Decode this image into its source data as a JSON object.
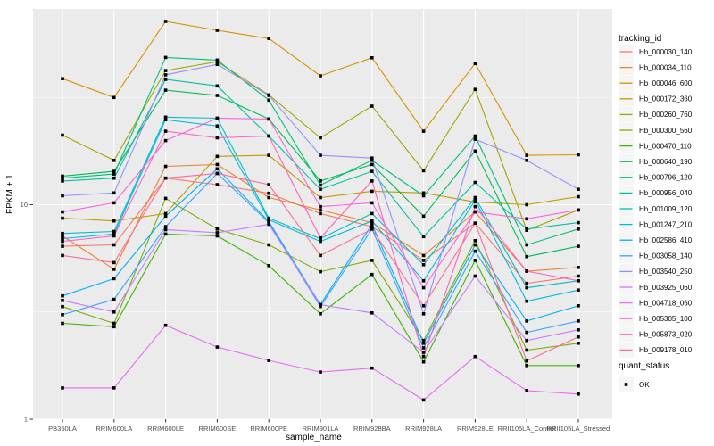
{
  "chart_data": {
    "type": "line",
    "title": "",
    "xlabel": "sample_name",
    "ylabel": "FPKM + 1",
    "x_categories": [
      "PB350LA",
      "RRIM600LA",
      "RRIM600LE",
      "RRIM600SE",
      "RRIM600PE",
      "RRIM901LA",
      "RRIM928BA",
      "RRIM928LA",
      "RRIM928LE",
      "RRII105LA_Control",
      "RRII105LA_Stressed"
    ],
    "y_axis": {
      "scale": "log10",
      "tick_labels": [
        "1",
        "10"
      ],
      "tick_values": [
        1,
        10
      ],
      "minor_values": [
        3.1623,
        31.623
      ],
      "range": [
        1,
        82
      ]
    },
    "grid": true,
    "legend_position": "right",
    "legends": {
      "color_legend_title": "tracking_id",
      "shape_legend_title": "quant_status",
      "shape_items": [
        {
          "label": "OK",
          "shape": "filled-square",
          "color": "#000000"
        }
      ]
    },
    "series": [
      {
        "name": "Hb_000030_140",
        "color": "#F8766D",
        "quant_status": "OK",
        "values": [
          6.4,
          6.5,
          13.3,
          12.4,
          11.3,
          9.1,
          7.9,
          5.5,
          8.2,
          4.3,
          4.65
        ]
      },
      {
        "name": "Hb_000034_110",
        "color": "#EA8331",
        "quant_status": "OK",
        "values": [
          7.15,
          5.0,
          15.1,
          15.4,
          10.8,
          9.45,
          8.25,
          5.8,
          9.25,
          4.9,
          5.1
        ]
      },
      {
        "name": "Hb_000046_600",
        "color": "#D89000",
        "quant_status": "OK",
        "values": [
          38.7,
          31.6,
          71.5,
          65.0,
          59.5,
          39.9,
          48.4,
          22.0,
          45.5,
          17.0,
          17.1
        ]
      },
      {
        "name": "Hb_000172_360",
        "color": "#C09B00",
        "quant_status": "OK",
        "values": [
          8.65,
          8.4,
          9.1,
          16.8,
          17.0,
          10.8,
          11.55,
          11.35,
          10.3,
          10.0,
          10.9
        ]
      },
      {
        "name": "Hb_000260_760",
        "color": "#A3A500",
        "quant_status": "OK",
        "values": [
          21.1,
          16.1,
          42.2,
          46.4,
          32.5,
          20.5,
          28.8,
          14.4,
          34.5,
          7.6,
          9.45
        ]
      },
      {
        "name": "Hb_000300_560",
        "color": "#7CAE00",
        "quant_status": "OK",
        "values": [
          3.35,
          2.8,
          10.7,
          7.7,
          6.5,
          4.87,
          5.5,
          2.33,
          6.8,
          2.1,
          2.26
        ]
      },
      {
        "name": "Hb_000470_110",
        "color": "#39B600",
        "quant_status": "OK",
        "values": [
          2.8,
          2.7,
          7.3,
          7.15,
          5.2,
          3.1,
          4.73,
          1.85,
          5.5,
          1.78,
          1.78
        ]
      },
      {
        "name": "Hb_000640_190",
        "color": "#00BB4E",
        "quant_status": "OK",
        "values": [
          13.6,
          14.3,
          34.2,
          32.3,
          25.1,
          12.9,
          15.4,
          8.85,
          17.8,
          5.73,
          6.4
        ]
      },
      {
        "name": "Hb_000796_120",
        "color": "#00BF7D",
        "quant_status": "OK",
        "values": [
          13.3,
          13.9,
          48.6,
          47.2,
          30.7,
          12.35,
          16.1,
          11.0,
          20.9,
          6.5,
          7.7
        ]
      },
      {
        "name": "Hb_000956_040",
        "color": "#00C1A3",
        "quant_status": "OK",
        "values": [
          12.9,
          13.3,
          38.4,
          35.8,
          20.9,
          11.8,
          14.3,
          7.1,
          12.7,
          7.7,
          8.25
        ]
      },
      {
        "name": "Hb_001009_120",
        "color": "#00BFC4",
        "quant_status": "OK",
        "values": [
          7.35,
          7.5,
          25.6,
          25.3,
          8.65,
          6.95,
          9.1,
          5.25,
          10.8,
          4.1,
          4.42
        ]
      },
      {
        "name": "Hb_001247_210",
        "color": "#00BAE0",
        "quant_status": "OK",
        "values": [
          6.95,
          7.3,
          24.9,
          23.3,
          8.5,
          6.75,
          8.4,
          4.42,
          10.5,
          3.55,
          4.0
        ]
      },
      {
        "name": "Hb_002586_410",
        "color": "#00B0F6",
        "quant_status": "OK",
        "values": [
          3.76,
          4.52,
          8.85,
          14.7,
          8.35,
          3.42,
          8.1,
          2.26,
          6.5,
          2.87,
          3.38
        ]
      },
      {
        "name": "Hb_003058_140",
        "color": "#35A2FF",
        "quant_status": "OK",
        "values": [
          3.07,
          3.62,
          7.9,
          14.0,
          8.25,
          3.35,
          7.7,
          2.15,
          6.07,
          2.54,
          2.87
        ]
      },
      {
        "name": "Hb_003540_250",
        "color": "#9590FF",
        "quant_status": "OK",
        "values": [
          11.0,
          11.35,
          40.3,
          45.1,
          32.3,
          17.0,
          16.5,
          3.1,
          20.2,
          16.1,
          11.8
        ]
      },
      {
        "name": "Hb_003925_060",
        "color": "#C77CFF",
        "quant_status": "OK",
        "values": [
          3.58,
          3.16,
          7.65,
          7.4,
          8.1,
          3.42,
          3.13,
          2.05,
          4.65,
          2.33,
          2.61
        ]
      },
      {
        "name": "Hb_004718_060",
        "color": "#E76BF3",
        "quant_status": "OK",
        "values": [
          1.4,
          1.4,
          2.74,
          2.17,
          1.88,
          1.66,
          1.73,
          1.23,
          1.96,
          1.36,
          1.31
        ]
      },
      {
        "name": "Hb_005305_100",
        "color": "#FA62DB",
        "quant_status": "OK",
        "values": [
          9.25,
          10.2,
          19.9,
          25.3,
          25.1,
          9.8,
          10.2,
          4.1,
          9.25,
          8.6,
          9.45
        ]
      },
      {
        "name": "Hb_005873_020",
        "color": "#FF62BC",
        "quant_status": "OK",
        "values": [
          6.75,
          7.15,
          22.0,
          20.5,
          20.9,
          7.0,
          12.9,
          1.96,
          9.8,
          4.9,
          4.42
        ]
      },
      {
        "name": "Hb_009178_010",
        "color": "#FF6A98",
        "quant_status": "OK",
        "values": [
          5.8,
          5.37,
          13.3,
          14.0,
          12.4,
          5.8,
          7.7,
          3.38,
          8.2,
          1.87,
          2.42
        ]
      }
    ]
  },
  "style": {
    "panel_bg": "#EBEBEB",
    "grid_color": "#FFFFFF",
    "axis_text_color": "#4D4D4D",
    "tick_mark_color": "#333333",
    "title_color": "#000000",
    "point_color": "#000000",
    "legend_key_bg": "#F5F5F5"
  }
}
